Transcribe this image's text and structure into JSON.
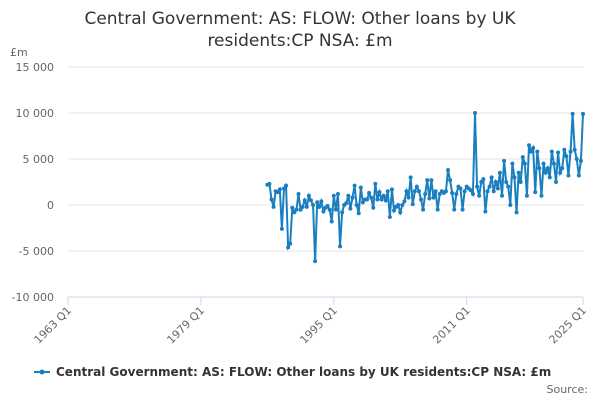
{
  "chart_data": {
    "type": "line",
    "title": "Central Government: AS: FLOW: Other loans by UK residents:CP NSA: £m",
    "y_unit": "£m",
    "source": "Source:",
    "x": [
      "1987 Q1",
      "1987 Q2",
      "1987 Q3",
      "1987 Q4",
      "1988 Q1",
      "1988 Q2",
      "1988 Q3",
      "1988 Q4",
      "1989 Q1",
      "1989 Q2",
      "1989 Q3",
      "1989 Q4",
      "1990 Q1",
      "1990 Q2",
      "1990 Q3",
      "1990 Q4",
      "1991 Q1",
      "1991 Q2",
      "1991 Q3",
      "1991 Q4",
      "1992 Q1",
      "1992 Q2",
      "1992 Q3",
      "1992 Q4",
      "1993 Q1",
      "1993 Q2",
      "1993 Q3",
      "1993 Q4",
      "1994 Q1",
      "1994 Q2",
      "1994 Q3",
      "1994 Q4",
      "1995 Q1",
      "1995 Q2",
      "1995 Q3",
      "1995 Q4",
      "1996 Q1",
      "1996 Q2",
      "1996 Q3",
      "1996 Q4",
      "1997 Q1",
      "1997 Q2",
      "1997 Q3",
      "1997 Q4",
      "1998 Q1",
      "1998 Q2",
      "1998 Q3",
      "1998 Q4",
      "1999 Q1",
      "1999 Q2",
      "1999 Q3",
      "1999 Q4",
      "2000 Q1",
      "2000 Q2",
      "2000 Q3",
      "2000 Q4",
      "2001 Q1",
      "2001 Q2",
      "2001 Q3",
      "2001 Q4",
      "2002 Q1",
      "2002 Q2",
      "2002 Q3",
      "2002 Q4",
      "2003 Q1",
      "2003 Q2",
      "2003 Q3",
      "2003 Q4",
      "2004 Q1",
      "2004 Q2",
      "2004 Q3",
      "2004 Q4",
      "2005 Q1",
      "2005 Q2",
      "2005 Q3",
      "2005 Q4",
      "2006 Q1",
      "2006 Q2",
      "2006 Q3",
      "2006 Q4",
      "2007 Q1",
      "2007 Q2",
      "2007 Q3",
      "2007 Q4",
      "2008 Q1",
      "2008 Q2",
      "2008 Q3",
      "2008 Q4",
      "2009 Q1",
      "2009 Q2",
      "2009 Q3",
      "2009 Q4",
      "2010 Q1",
      "2010 Q2",
      "2010 Q3",
      "2010 Q4",
      "2011 Q1",
      "2011 Q2",
      "2011 Q3",
      "2011 Q4",
      "2012 Q1",
      "2012 Q2",
      "2012 Q3",
      "2012 Q4",
      "2013 Q1",
      "2013 Q2",
      "2013 Q3",
      "2013 Q4",
      "2014 Q1",
      "2014 Q2",
      "2014 Q3",
      "2014 Q4",
      "2015 Q1",
      "2015 Q2",
      "2015 Q3",
      "2015 Q4",
      "2016 Q1",
      "2016 Q2",
      "2016 Q3",
      "2016 Q4",
      "2017 Q1",
      "2017 Q2",
      "2017 Q3",
      "2017 Q4",
      "2018 Q1",
      "2018 Q2",
      "2018 Q3",
      "2018 Q4",
      "2019 Q1",
      "2019 Q2",
      "2019 Q3",
      "2019 Q4",
      "2020 Q1",
      "2020 Q2",
      "2020 Q3",
      "2020 Q4",
      "2021 Q1",
      "2021 Q2",
      "2021 Q3",
      "2021 Q4",
      "2022 Q1",
      "2022 Q2",
      "2022 Q3",
      "2022 Q4",
      "2023 Q1",
      "2023 Q2",
      "2023 Q3",
      "2023 Q4",
      "2024 Q1",
      "2024 Q2",
      "2024 Q3",
      "2024 Q4",
      "2025 Q1"
    ],
    "series": [
      {
        "name": "Central Government: AS: FLOW: Other loans by UK residents:CP NSA: £m",
        "color": "#1a7fc1",
        "values": [
          2200,
          2300,
          600,
          -200,
          1500,
          1400,
          1700,
          -2600,
          1800,
          2100,
          -4600,
          -4200,
          -300,
          -800,
          -500,
          1200,
          -500,
          -200,
          500,
          -200,
          1000,
          500,
          0,
          -6100,
          300,
          -200,
          400,
          -700,
          -300,
          -100,
          -500,
          -1800,
          1000,
          -500,
          1200,
          -4500,
          -800,
          0,
          200,
          1000,
          -400,
          800,
          2100,
          0,
          -900,
          1900,
          300,
          600,
          600,
          1300,
          800,
          -300,
          2300,
          600,
          1400,
          600,
          1000,
          500,
          1500,
          -1300,
          1700,
          -600,
          -200,
          0,
          -800,
          0,
          400,
          1500,
          800,
          3000,
          100,
          1500,
          2000,
          1500,
          600,
          -500,
          1200,
          2700,
          700,
          2700,
          800,
          1500,
          -500,
          1200,
          1500,
          1300,
          1500,
          3800,
          2700,
          1300,
          -500,
          1200,
          2000,
          1800,
          -500,
          1500,
          2000,
          1800,
          1600,
          1200,
          10000,
          2000,
          1000,
          2500,
          2800,
          -700,
          1500,
          2000,
          3000,
          1500,
          2500,
          1800,
          3500,
          1000,
          4800,
          2500,
          2000,
          0,
          4500,
          3000,
          -800,
          3500,
          2500,
          5200,
          4500,
          1000,
          6500,
          5800,
          6200,
          1400,
          5800,
          4000,
          1000,
          4500,
          3500,
          4000,
          3000,
          5800,
          4500,
          2500,
          5700,
          3500,
          4000,
          6000,
          5300,
          3200,
          5800,
          9900,
          6000,
          5000,
          3200,
          4800,
          9900
        ]
      }
    ],
    "xlim": [
      "1963 Q1",
      "2025 Q1"
    ],
    "xticks": [
      "1963 Q1",
      "1979 Q1",
      "1995 Q1",
      "2011 Q1",
      "2025 Q1"
    ],
    "ylim": [
      -10000,
      15000
    ],
    "yticks": [
      {
        "value": -10000,
        "label": "-10 000"
      },
      {
        "value": -5000,
        "label": "-5 000"
      },
      0,
      {
        "value": 5000,
        "label": "5 000"
      },
      {
        "value": 10000,
        "label": "10 000"
      },
      {
        "value": 15000,
        "label": "15 000"
      }
    ],
    "grid": true
  }
}
